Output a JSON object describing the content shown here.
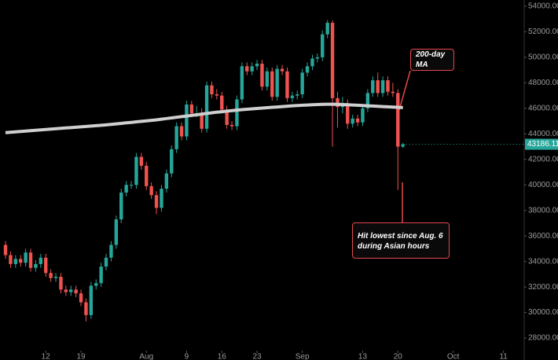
{
  "chart_data": {
    "type": "candlestick",
    "x": [
      0,
      1,
      2,
      3,
      4,
      5,
      6,
      7,
      8,
      9,
      10,
      11,
      12,
      13,
      14,
      15,
      16,
      17,
      18,
      19,
      20,
      21,
      22,
      23,
      24,
      25,
      26,
      27,
      28,
      29,
      30,
      31,
      32,
      33,
      34,
      35,
      36,
      37,
      38,
      39,
      40,
      41,
      42,
      43,
      44,
      45,
      46,
      47,
      48,
      49,
      50,
      51,
      52,
      53,
      54,
      55,
      56,
      57,
      58,
      59,
      60,
      61,
      62,
      63,
      64,
      65,
      66,
      67,
      68,
      69,
      70,
      71,
      72,
      73,
      74,
      75,
      76,
      77,
      78,
      79
    ],
    "open": [
      35300,
      34500,
      33800,
      34200,
      33900,
      34700,
      33500,
      33800,
      34300,
      33100,
      32700,
      32800,
      31800,
      31600,
      31800,
      31500,
      30800,
      29800,
      32100,
      32300,
      33600,
      34300,
      35300,
      37300,
      39400,
      40000,
      40000,
      42200,
      41500,
      39900,
      39200,
      38200,
      39700,
      40900,
      42800,
      44600,
      43800,
      46300,
      45600,
      45600,
      44400,
      47800,
      47100,
      47000,
      45900,
      44700,
      44600,
      46700,
      49300,
      48900,
      49300,
      49500,
      47700,
      48900,
      46900,
      49100,
      48900,
      46800,
      47000,
      47100,
      48800,
      49300,
      49900,
      50000,
      51800,
      52700,
      46800,
      46100,
      46400,
      44800,
      45200,
      44900,
      46000,
      47200,
      48200,
      47200,
      48200,
      47300,
      47200,
      43000
    ],
    "high": [
      35600,
      34800,
      34500,
      34500,
      35000,
      35000,
      34100,
      34600,
      34600,
      33400,
      33100,
      33100,
      32100,
      32100,
      32100,
      31800,
      31100,
      32400,
      32600,
      33900,
      34600,
      35600,
      37600,
      39700,
      40300,
      40300,
      42500,
      42500,
      41800,
      40200,
      39500,
      40000,
      41200,
      43100,
      44900,
      44900,
      46600,
      46600,
      46200,
      46000,
      48100,
      48100,
      47500,
      47300,
      46200,
      45000,
      47000,
      49600,
      49600,
      49600,
      49800,
      49800,
      49200,
      49200,
      49400,
      49400,
      49200,
      47300,
      47400,
      49100,
      49600,
      50200,
      50300,
      52100,
      52900,
      52900,
      47300,
      46900,
      46700,
      45500,
      45500,
      46300,
      47500,
      48500,
      48800,
      48500,
      48500,
      48000,
      47500,
      43300
    ],
    "low": [
      34200,
      33500,
      33500,
      33600,
      33600,
      33200,
      33200,
      33500,
      32800,
      32400,
      32400,
      31500,
      31300,
      31300,
      31200,
      30500,
      29300,
      29500,
      31800,
      32000,
      33300,
      34000,
      35000,
      37000,
      39100,
      39700,
      39700,
      41200,
      39600,
      38900,
      37700,
      37900,
      39400,
      40600,
      42500,
      43500,
      43500,
      45300,
      45300,
      44100,
      44100,
      46800,
      46700,
      45600,
      44400,
      44300,
      44300,
      46400,
      48600,
      48600,
      49000,
      47400,
      47400,
      46600,
      46600,
      48600,
      46500,
      46500,
      46700,
      46800,
      48500,
      49000,
      49600,
      49700,
      51500,
      43000,
      44500,
      45600,
      44400,
      44500,
      44600,
      44600,
      45700,
      46900,
      46900,
      46900,
      47000,
      46900,
      39600,
      42900
    ],
    "close": [
      34500,
      33800,
      34200,
      33900,
      34700,
      33500,
      33800,
      34300,
      33100,
      32700,
      32800,
      31800,
      31600,
      31800,
      31500,
      30800,
      29800,
      32100,
      32300,
      33600,
      34300,
      35300,
      37300,
      39400,
      40000,
      40000,
      42200,
      41500,
      39900,
      39200,
      38200,
      39700,
      40900,
      42800,
      44600,
      43800,
      46300,
      45600,
      45600,
      44400,
      47800,
      47100,
      47000,
      45900,
      44700,
      44600,
      46700,
      49300,
      48900,
      49300,
      49500,
      47700,
      48900,
      46900,
      49100,
      48900,
      46800,
      47000,
      47100,
      48800,
      49300,
      49900,
      50000,
      51800,
      52700,
      46800,
      46100,
      46400,
      44800,
      45200,
      44900,
      46000,
      47200,
      48200,
      47200,
      48200,
      47300,
      47200,
      43000,
      43186.11
    ],
    "up_color": "#26a69a",
    "down_color": "#ef5350",
    "ma": {
      "color": "#cfcfcf",
      "values": [
        44100,
        44130,
        44160,
        44190,
        44220,
        44250,
        44280,
        44310,
        44340,
        44370,
        44400,
        44430,
        44460,
        44490,
        44520,
        44550,
        44580,
        44610,
        44640,
        44670,
        44700,
        44740,
        44780,
        44820,
        44860,
        44900,
        44940,
        44980,
        45020,
        45060,
        45100,
        45150,
        45200,
        45250,
        45300,
        45350,
        45400,
        45450,
        45500,
        45550,
        45600,
        45650,
        45700,
        45740,
        45780,
        45820,
        45860,
        45900,
        45930,
        45960,
        45990,
        46020,
        46050,
        46080,
        46110,
        46140,
        46170,
        46200,
        46220,
        46240,
        46260,
        46280,
        46300,
        46310,
        46320,
        46320,
        46310,
        46300,
        46280,
        46260,
        46240,
        46220,
        46200,
        46180,
        46160,
        46140,
        46120,
        46100,
        46080,
        46060
      ]
    },
    "annotations": [
      {
        "text": "200-day MA"
      },
      {
        "text": "Hit lowest since Aug. 6 during Asian hours"
      }
    ],
    "xlim": [
      -1.1,
      102.8
    ],
    "xticks": [
      {
        "value": 8,
        "label": "12"
      },
      {
        "value": 15,
        "label": "19"
      },
      {
        "value": 28,
        "label": "Aug"
      },
      {
        "value": 36,
        "label": "9"
      },
      {
        "value": 43,
        "label": "16"
      },
      {
        "value": 50,
        "label": "23"
      },
      {
        "value": 59,
        "label": "Sep"
      },
      {
        "value": 71,
        "label": "13"
      },
      {
        "value": 78,
        "label": "20"
      },
      {
        "value": 89,
        "label": "Oct"
      },
      {
        "value": 99,
        "label": "11"
      }
    ],
    "ylim": [
      26280,
      54490
    ],
    "yticks": [
      {
        "value": 28000,
        "label": "28000.00"
      },
      {
        "value": 30000,
        "label": "30000.00"
      },
      {
        "value": 32000,
        "label": "32000.00"
      },
      {
        "value": 34000,
        "label": "34000.00"
      },
      {
        "value": 36000,
        "label": "36000.00"
      },
      {
        "value": 38000,
        "label": "38000.00"
      },
      {
        "value": 40000,
        "label": "40000.00"
      },
      {
        "value": 42000,
        "label": "42000.00"
      },
      {
        "value": 44000,
        "label": "44000.00"
      },
      {
        "value": 46000,
        "label": "46000.00"
      },
      {
        "value": 48000,
        "label": "48000.00"
      },
      {
        "value": 50000,
        "label": "50000.00"
      },
      {
        "value": 52000,
        "label": "52000.00"
      },
      {
        "value": 54000,
        "label": "54000.00"
      }
    ]
  }
}
